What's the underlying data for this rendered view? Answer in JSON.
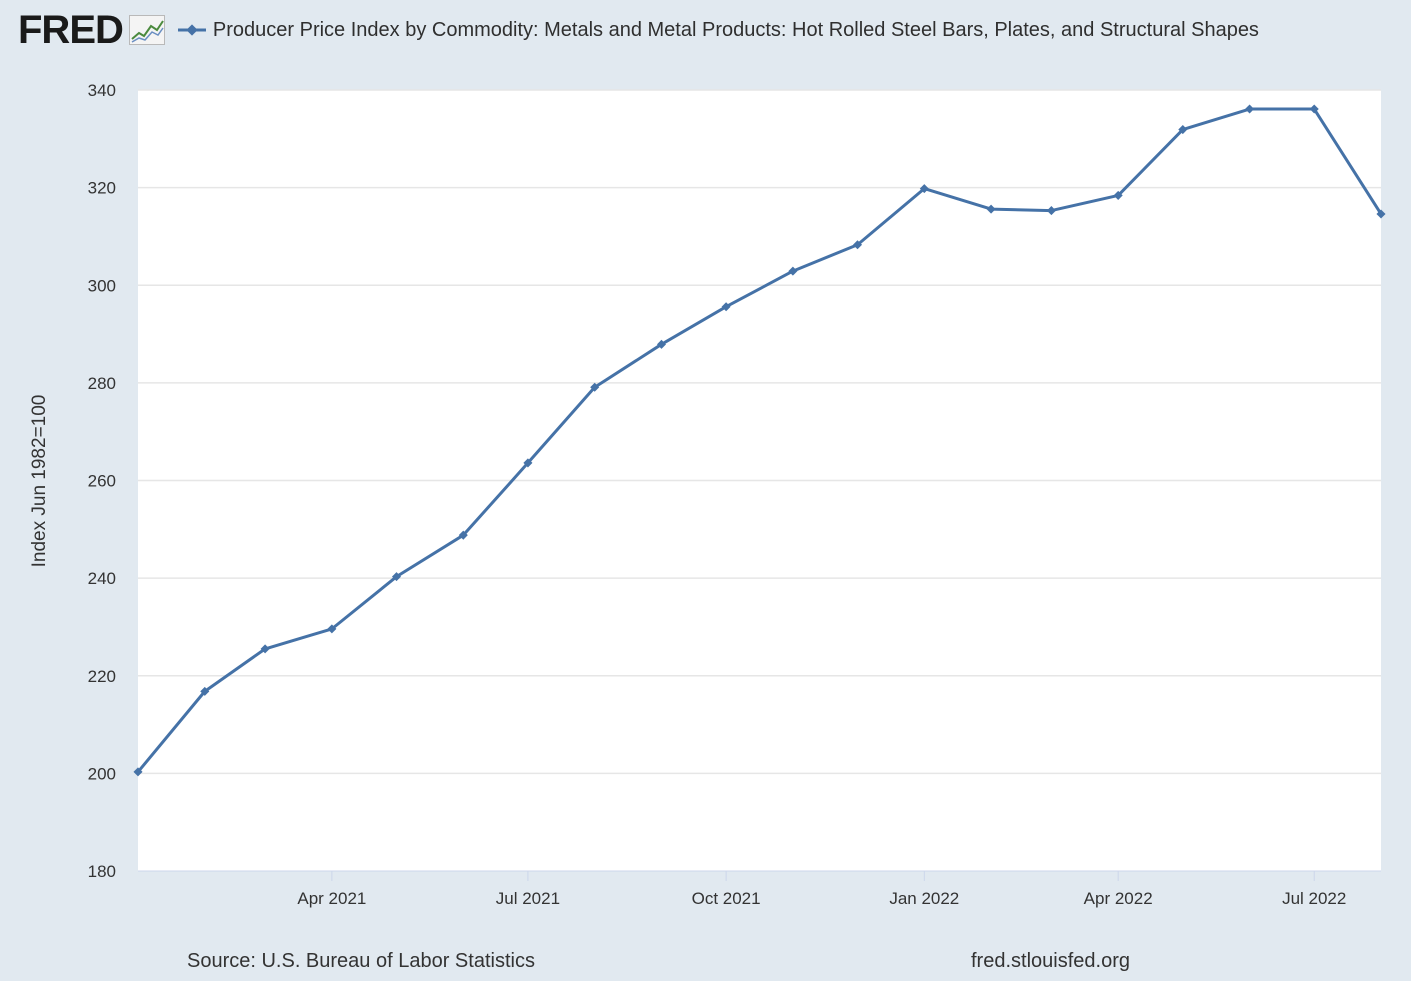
{
  "header": {
    "logo_text": "FRED",
    "logo_icon": "line-chart-icon"
  },
  "colors": {
    "background": "#e1e9f0",
    "plot_background": "#ffffff",
    "series_line": "#4572a7",
    "grid": "#e6e6e6",
    "text": "#333333"
  },
  "chart_data": {
    "type": "line",
    "title": "",
    "legend_placement": "top",
    "ylabel": "Index Jun 1982=100",
    "xlabel": "",
    "ylim": [
      180,
      340
    ],
    "yticks": [
      180,
      200,
      220,
      240,
      260,
      280,
      300,
      320,
      340
    ],
    "xlim": [
      "2021-01-01",
      "2022-08-01"
    ],
    "xticks": [
      {
        "date": "2021-04-01",
        "label": "Apr 2021"
      },
      {
        "date": "2021-07-01",
        "label": "Jul 2021"
      },
      {
        "date": "2021-10-01",
        "label": "Oct 2021"
      },
      {
        "date": "2022-01-01",
        "label": "Jan 2022"
      },
      {
        "date": "2022-04-01",
        "label": "Apr 2022"
      },
      {
        "date": "2022-07-01",
        "label": "Jul 2022"
      }
    ],
    "grid": true,
    "series": [
      {
        "name": "Producer Price Index by Commodity: Metals and Metal Products: Hot Rolled Steel Bars, Plates, and Structural Shapes",
        "color": "#4572a7",
        "x": [
          "2021-01-01",
          "2021-02-01",
          "2021-03-01",
          "2021-04-01",
          "2021-05-01",
          "2021-06-01",
          "2021-07-01",
          "2021-08-01",
          "2021-09-01",
          "2021-10-01",
          "2021-11-01",
          "2021-12-01",
          "2022-01-01",
          "2022-02-01",
          "2022-03-01",
          "2022-04-01",
          "2022-05-01",
          "2022-06-01",
          "2022-07-01",
          "2022-08-01"
        ],
        "values": [
          200.3,
          216.8,
          225.5,
          229.6,
          240.3,
          248.8,
          263.6,
          279.1,
          287.9,
          295.6,
          302.9,
          308.3,
          319.8,
          315.6,
          315.3,
          318.4,
          331.9,
          336.1,
          336.1,
          314.6
        ]
      }
    ]
  },
  "footer": {
    "source": "Source: U.S. Bureau of Labor Statistics",
    "url": "fred.stlouisfed.org"
  }
}
